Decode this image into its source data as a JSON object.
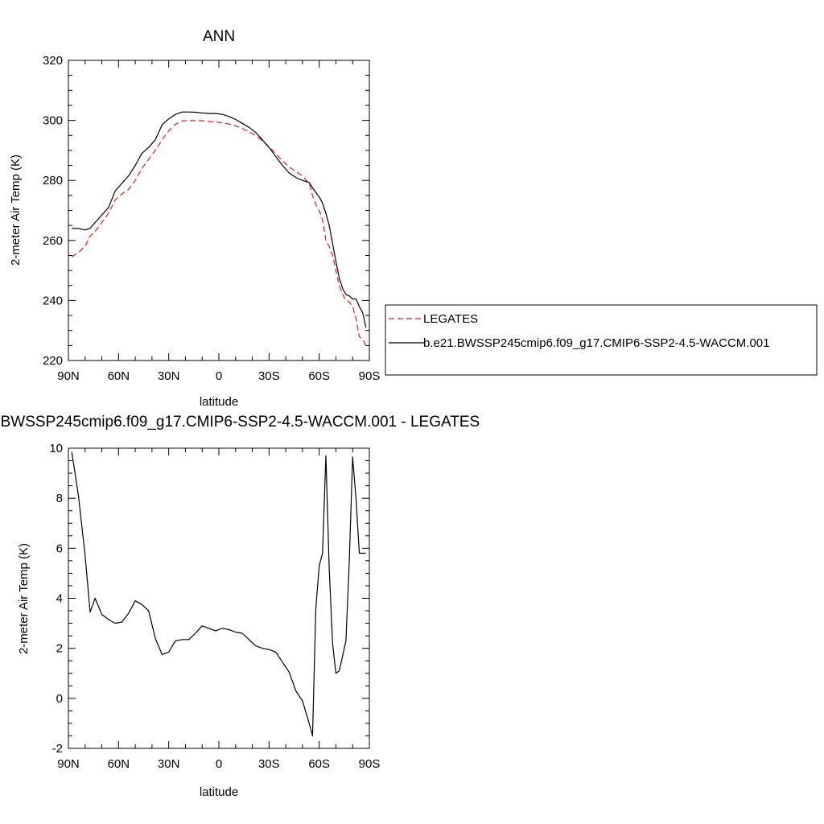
{
  "chart_data": [
    {
      "type": "line",
      "title": "ANN",
      "xlabel": "latitude",
      "ylabel": "2-meter Air Temp (K)",
      "xlim": [
        90,
        -90
      ],
      "ylim": [
        220,
        320
      ],
      "xticks": [
        90,
        60,
        30,
        0,
        -30,
        -60,
        -90
      ],
      "xtick_labels": [
        "90N",
        "60N",
        "30N",
        "0",
        "30S",
        "60S",
        "90S"
      ],
      "yticks": [
        220,
        240,
        260,
        280,
        300,
        320
      ],
      "ytick_labels": [
        "220",
        "240",
        "260",
        "280",
        "300",
        "320"
      ],
      "grid": false,
      "legend": "right-outside",
      "series": [
        {
          "name": "LEGATES",
          "color": "#e8191c",
          "dash": "dashed",
          "x": [
            88,
            84,
            80,
            77,
            74,
            70,
            66,
            62,
            58,
            54,
            50,
            46,
            42,
            38,
            34,
            30,
            26,
            22,
            18,
            14,
            10,
            6,
            2,
            -2,
            -6,
            -10,
            -14,
            -18,
            -22,
            -26,
            -30,
            -34,
            -38,
            -42,
            -46,
            -50,
            -54,
            -56,
            -58,
            -60,
            -62,
            -64,
            -66,
            -68,
            -70,
            -72,
            -74,
            -76,
            -78,
            -80,
            -82,
            -84,
            -86,
            -88
          ],
          "y": [
            254.5,
            256,
            258,
            261.5,
            263,
            266,
            269,
            273.5,
            275.5,
            277,
            280,
            284,
            287,
            290,
            293.5,
            296.5,
            298.7,
            299.8,
            300,
            299.9,
            299.9,
            299.6,
            299.4,
            299.2,
            298.8,
            298.2,
            297.3,
            296.2,
            295,
            293.2,
            291.2,
            289,
            286.5,
            284.5,
            283,
            281.5,
            279,
            275,
            272,
            270,
            267,
            260,
            258,
            255,
            250,
            245,
            242,
            240,
            239.5,
            238,
            234,
            228,
            227,
            225
          ]
        },
        {
          "name": "b.e21.BWSSP245cmip6.f09_g17.CMIP6-SSP2-4.5-WACCM.001",
          "color": "#000000",
          "dash": "solid",
          "x": [
            88,
            84,
            80,
            77,
            74,
            70,
            66,
            62,
            58,
            54,
            50,
            46,
            42,
            38,
            34,
            30,
            26,
            22,
            18,
            14,
            10,
            6,
            2,
            -2,
            -6,
            -10,
            -14,
            -18,
            -22,
            -26,
            -30,
            -34,
            -38,
            -42,
            -46,
            -50,
            -54,
            -56,
            -58,
            -60,
            -62,
            -64,
            -66,
            -68,
            -70,
            -72,
            -74,
            -76,
            -78,
            -80,
            -82,
            -84,
            -86,
            -88
          ],
          "y": [
            264,
            264,
            263.5,
            264,
            266,
            268.5,
            271,
            276.5,
            279,
            281.5,
            285,
            289,
            291,
            293.5,
            298.5,
            300.5,
            302,
            302.8,
            302.8,
            302.7,
            302.5,
            302.3,
            302.3,
            302,
            301.3,
            300.3,
            299,
            297.7,
            296,
            293.5,
            291,
            288,
            285,
            282.5,
            281,
            280,
            279.3,
            277.5,
            276,
            274.5,
            272.5,
            269,
            265,
            259,
            253,
            247.5,
            244,
            242,
            241.5,
            240.5,
            240.5,
            238,
            236,
            231
          ]
        }
      ]
    },
    {
      "type": "line",
      "title": "b.e21.BWSSP245cmip6.f09_g17.CMIP6-SSP2-4.5-WACCM.001 - LEGATES",
      "xlabel": "latitude",
      "ylabel": "2-meter Air Temp (K)",
      "xlim": [
        90,
        -90
      ],
      "ylim": [
        -2,
        10
      ],
      "xticks": [
        90,
        60,
        30,
        0,
        -30,
        -60,
        -90
      ],
      "xtick_labels": [
        "90N",
        "60N",
        "30N",
        "0",
        "30S",
        "60S",
        "90S"
      ],
      "yticks": [
        -2,
        0,
        2,
        4,
        6,
        8,
        10
      ],
      "ytick_labels": [
        "-2",
        "0",
        "2",
        "4",
        "6",
        "8",
        "10"
      ],
      "grid": false,
      "series": [
        {
          "color": "#000000",
          "dash": "solid",
          "x": [
            88,
            84,
            80,
            77,
            74,
            70,
            66,
            62,
            58,
            54,
            50,
            46,
            42,
            38,
            34,
            30,
            26,
            22,
            18,
            14,
            10,
            6,
            2,
            -2,
            -6,
            -10,
            -14,
            -18,
            -22,
            -26,
            -30,
            -34,
            -38,
            -42,
            -46,
            -50,
            -54,
            -56,
            -58,
            -60,
            -62,
            -64,
            -66,
            -68,
            -70,
            -72,
            -74,
            -76,
            -78,
            -80,
            -82,
            -84,
            -86,
            -88
          ],
          "y": [
            9.85,
            8.1,
            5.7,
            3.45,
            4.0,
            3.35,
            3.15,
            3.0,
            3.05,
            3.4,
            3.9,
            3.75,
            3.5,
            2.4,
            1.75,
            1.85,
            2.3,
            2.35,
            2.35,
            2.6,
            2.9,
            2.8,
            2.7,
            2.8,
            2.75,
            2.65,
            2.6,
            2.35,
            2.1,
            2.0,
            1.95,
            1.85,
            1.45,
            1.05,
            0.3,
            -0.1,
            -1.0,
            -1.5,
            3.6,
            5.3,
            5.8,
            9.7,
            5.2,
            2.2,
            1.0,
            1.1,
            1.7,
            2.3,
            5.5,
            9.65,
            8.0,
            5.8,
            5.8,
            5.8
          ]
        }
      ]
    }
  ]
}
